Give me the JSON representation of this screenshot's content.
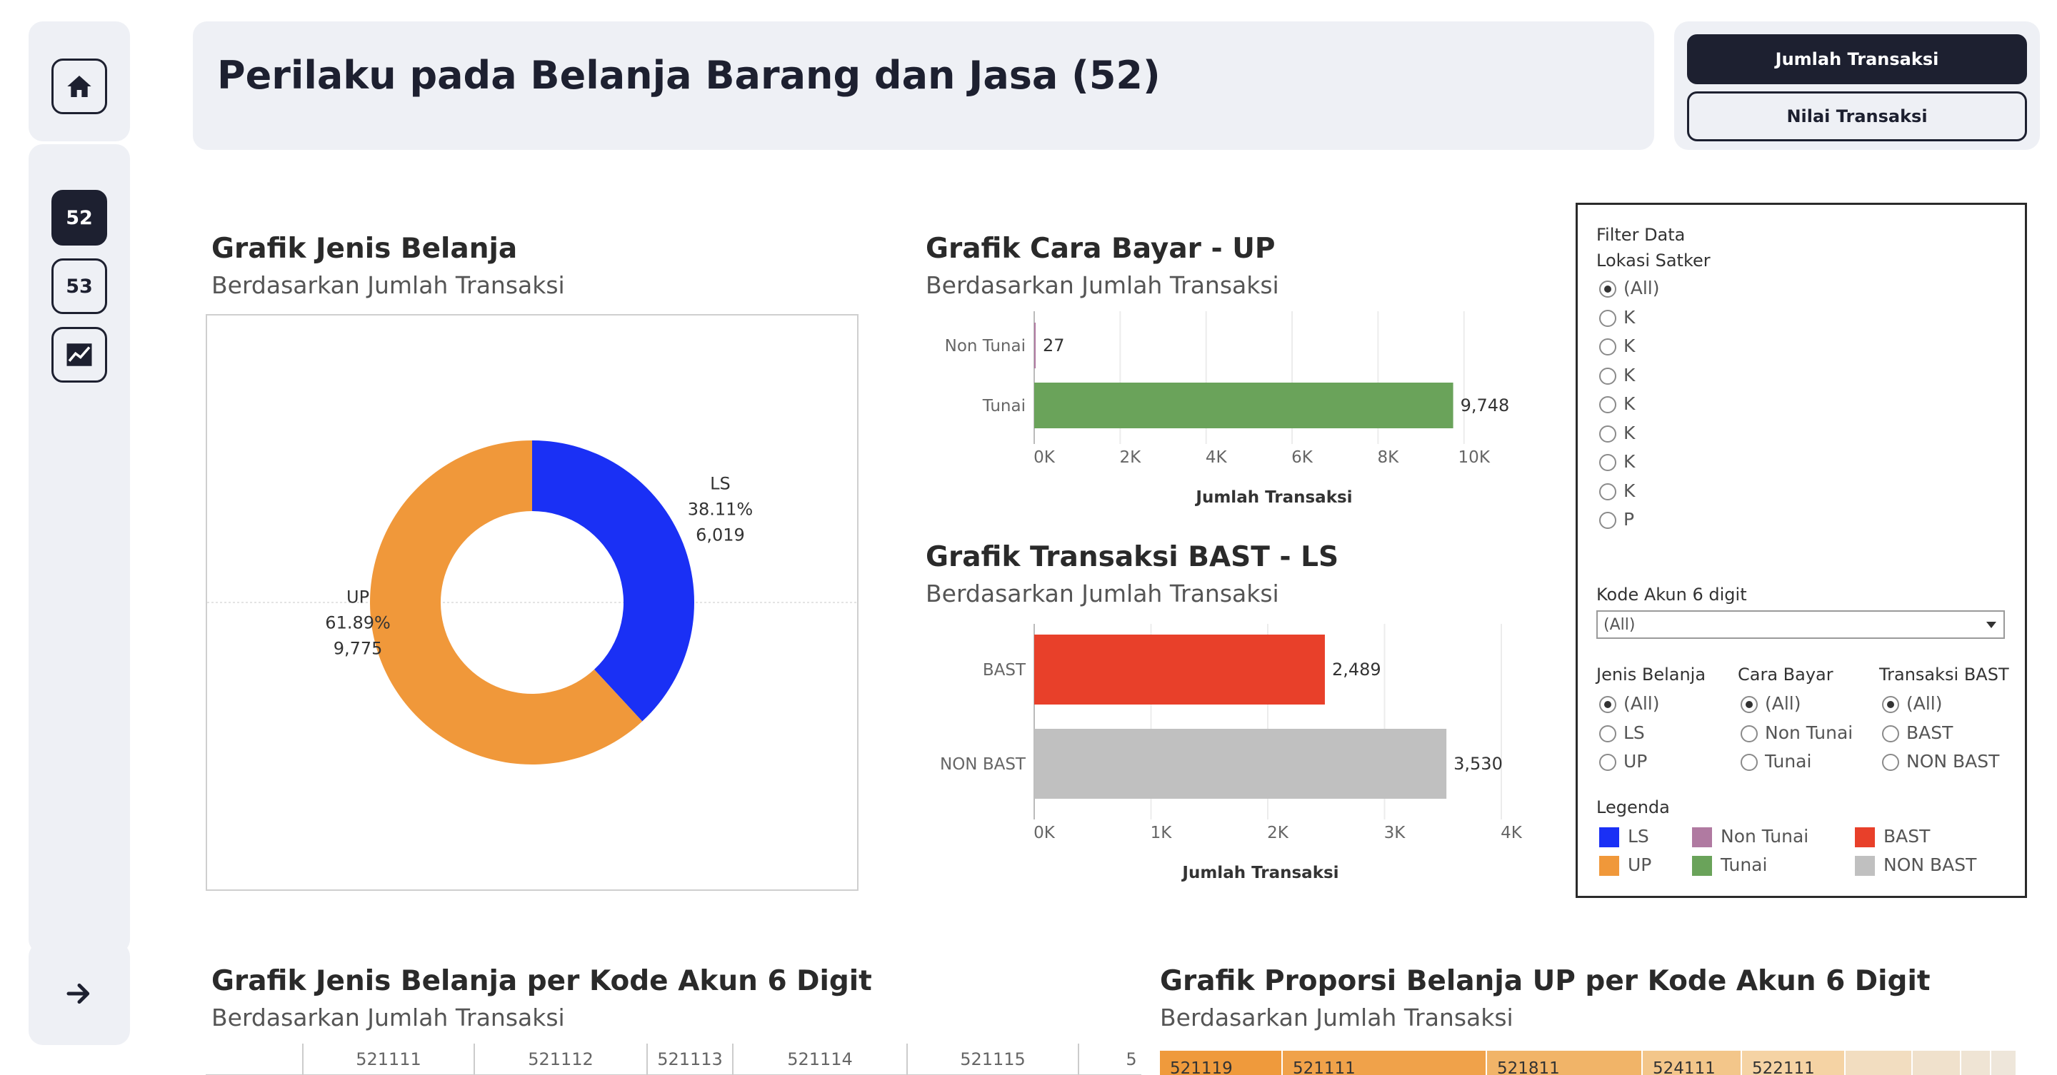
{
  "nav": {
    "items": [
      "52",
      "53"
    ]
  },
  "header": {
    "title": "Perilaku pada Belanja Barang dan Jasa (52)"
  },
  "toggle": {
    "active": "Jumlah Transaksi",
    "inactive": "Nilai Transaksi"
  },
  "charts": {
    "donut": {
      "title": "Grafik Jenis Belanja",
      "subtitle": "Berdasarkan Jumlah Transaksi"
    },
    "cara_bayar": {
      "title": "Grafik Cara Bayar - UP",
      "subtitle": "Berdasarkan Jumlah Transaksi"
    },
    "bast": {
      "title": "Grafik Transaksi BAST - LS",
      "subtitle": "Berdasarkan Jumlah Transaksi"
    },
    "per_akun": {
      "title": "Grafik Jenis Belanja per Kode Akun 6 Digit",
      "subtitle": "Berdasarkan Jumlah Transaksi"
    },
    "proporsi": {
      "title": "Grafik Proporsi Belanja UP per Kode Akun 6 Digit",
      "subtitle": "Berdasarkan Jumlah Transaksi"
    }
  },
  "filter": {
    "title": "Filter Data",
    "lokasi_label": "Lokasi Satker",
    "lokasi_options": [
      "(All)",
      "K",
      "K",
      "K",
      "K",
      "K",
      "K",
      "K",
      "P"
    ],
    "kode_label": "Kode Akun 6 digit",
    "kode_value": "(All)",
    "jenis_label": "Jenis Belanja",
    "jenis_options": [
      "(All)",
      "LS",
      "UP"
    ],
    "cara_label": "Cara Bayar",
    "cara_options": [
      "(All)",
      "Non Tunai",
      "Tunai"
    ],
    "bast_label": "Transaksi BAST",
    "bast_options": [
      "(All)",
      "BAST",
      "NON BAST"
    ],
    "legend_label": "Legenda",
    "legend": [
      {
        "label": "LS",
        "color": "#1a30f5"
      },
      {
        "label": "UP",
        "color": "#f0983a"
      },
      {
        "label": "Non Tunai",
        "color": "#b07aa1"
      },
      {
        "label": "Tunai",
        "color": "#6aa35a"
      },
      {
        "label": "BAST",
        "color": "#e8402a"
      },
      {
        "label": "NON BAST",
        "color": "#c0c0c0"
      }
    ]
  },
  "chart_data": [
    {
      "type": "pie",
      "title": "Grafik Jenis Belanja",
      "subtitle": "Berdasarkan Jumlah Transaksi",
      "slices": [
        {
          "label": "LS",
          "percent_label": "38.11%",
          "value_label": "6,019",
          "value": 6019,
          "color": "#1a30f5"
        },
        {
          "label": "UP",
          "percent_label": "61.89%",
          "value_label": "9,775",
          "value": 9775,
          "color": "#f0983a"
        }
      ]
    },
    {
      "type": "bar",
      "orientation": "horizontal",
      "title": "Grafik Cara Bayar - UP",
      "subtitle": "Berdasarkan Jumlah Transaksi",
      "categories": [
        "Non Tunai",
        "Tunai"
      ],
      "values": [
        27,
        9748
      ],
      "value_labels": [
        "27",
        "9,748"
      ],
      "colors": [
        "#b07aa1",
        "#6aa35a"
      ],
      "xlabel": "Jumlah Transaksi",
      "xlim": [
        0,
        11500
      ],
      "ticks": [
        0,
        2000,
        4000,
        6000,
        8000,
        10000
      ],
      "tick_labels": [
        "0K",
        "2K",
        "4K",
        "6K",
        "8K",
        "10K"
      ],
      "grid": true
    },
    {
      "type": "bar",
      "orientation": "horizontal",
      "title": "Grafik Transaksi BAST - LS",
      "subtitle": "Berdasarkan Jumlah Transaksi",
      "categories": [
        "BAST",
        "NON BAST"
      ],
      "values": [
        2489,
        3530
      ],
      "value_labels": [
        "2,489",
        "3,530"
      ],
      "colors": [
        "#e8402a",
        "#c0c0c0"
      ],
      "xlabel": "Jumlah Transaksi",
      "xlim": [
        0,
        4000
      ],
      "ticks": [
        0,
        1000,
        2000,
        3000,
        4000
      ],
      "tick_labels": [
        "0K",
        "1K",
        "2K",
        "3K",
        "4K"
      ],
      "grid": true
    },
    {
      "type": "bar",
      "title": "Grafik Jenis Belanja per Kode Akun 6 Digit",
      "subtitle": "Berdasarkan Jumlah Transaksi",
      "categories": [
        "521111",
        "521112",
        "521113",
        "521114",
        "521115",
        "5"
      ]
    },
    {
      "type": "heatmap",
      "title": "Grafik Proporsi Belanja UP per Kode Akun 6 Digit",
      "subtitle": "Berdasarkan Jumlah Transaksi",
      "cells": [
        {
          "label": "521119",
          "color": "#ef9a3c"
        },
        {
          "label": "521111",
          "color": "#f0a24a"
        },
        {
          "label": "521811",
          "color": "#f1b468"
        },
        {
          "label": "524111",
          "color": "#f3c68a"
        },
        {
          "label": "522111",
          "color": "#f5d3a4"
        },
        {
          "label": "",
          "color": "#f2ddc0"
        },
        {
          "label": "",
          "color": "#f0e1cc"
        },
        {
          "label": "",
          "color": "#efe4d4"
        },
        {
          "label": "",
          "color": "#eee6da"
        }
      ]
    }
  ]
}
